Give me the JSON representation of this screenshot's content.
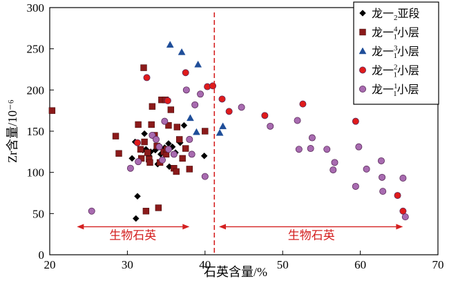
{
  "chart_data": {
    "type": "scatter",
    "xlabel": "石英含量/%",
    "ylabel": "Zr含量/10⁻⁶",
    "xlim": [
      20,
      70
    ],
    "ylim": [
      0,
      300
    ],
    "xticks": [
      20,
      30,
      40,
      50,
      60,
      70
    ],
    "yticks": [
      0,
      50,
      100,
      150,
      200,
      250,
      300
    ],
    "grid": false,
    "legend_position": "top-right",
    "divider_x": 41.2,
    "annotations": [
      {
        "text": "生物石英",
        "x_from": 23.5,
        "x_to": 38.0,
        "y": 34,
        "label_x": 30.7,
        "label_y": 24
      },
      {
        "text": "生物石英",
        "x_from": 41.8,
        "x_to": 65.5,
        "y": 34,
        "label_x": 53.7,
        "label_y": 24
      }
    ],
    "series": [
      {
        "name": "龙一2亚段",
        "legend_main": "龙一",
        "legend_sub": "2",
        "legend_sub_pos": "sub",
        "legend_tail": "亚段",
        "marker": "diamond",
        "color": "#000000",
        "points": [
          [
            30.6,
            117
          ],
          [
            31.0,
            137
          ],
          [
            31.3,
            71
          ],
          [
            31.1,
            44
          ],
          [
            32.0,
            127
          ],
          [
            32.2,
            147
          ],
          [
            32.4,
            128
          ],
          [
            32.8,
            120
          ],
          [
            33.0,
            125
          ],
          [
            33.6,
            127
          ],
          [
            33.9,
            110
          ],
          [
            34.3,
            122
          ],
          [
            34.8,
            130
          ],
          [
            35.3,
            135
          ],
          [
            35.4,
            107
          ],
          [
            35.8,
            131
          ],
          [
            36.2,
            124
          ],
          [
            36.8,
            136
          ],
          [
            37.3,
            157
          ],
          [
            39.9,
            120
          ]
        ]
      },
      {
        "name": "龙一14小层",
        "legend_main": "龙一",
        "legend_sub": "1",
        "legend_sup": "4",
        "legend_tail": "小层",
        "marker": "square",
        "color": "#8b1a1a",
        "points": [
          [
            20.3,
            175
          ],
          [
            28.5,
            144
          ],
          [
            28.9,
            123
          ],
          [
            31.4,
            158
          ],
          [
            31.7,
            128
          ],
          [
            31.8,
            117
          ],
          [
            32.1,
            227
          ],
          [
            32.2,
            137
          ],
          [
            32.4,
            53
          ],
          [
            32.6,
            124
          ],
          [
            32.8,
            116
          ],
          [
            32.9,
            112
          ],
          [
            33.1,
            158
          ],
          [
            33.2,
            180
          ],
          [
            33.5,
            145
          ],
          [
            33.8,
            132
          ],
          [
            34.0,
            57
          ],
          [
            34.2,
            112
          ],
          [
            34.4,
            188
          ],
          [
            34.7,
            125
          ],
          [
            34.9,
            188
          ],
          [
            35.0,
            122
          ],
          [
            35.1,
            128
          ],
          [
            35.3,
            157
          ],
          [
            35.6,
            176
          ],
          [
            36.0,
            105
          ],
          [
            36.3,
            101
          ],
          [
            36.4,
            155
          ],
          [
            36.7,
            140
          ],
          [
            37.1,
            117
          ],
          [
            37.5,
            129
          ],
          [
            38.0,
            104
          ],
          [
            40.0,
            150
          ]
        ]
      },
      {
        "name": "龙一13小层",
        "legend_main": "龙一",
        "legend_sub": "1",
        "legend_sup": "3",
        "legend_tail": "小层",
        "marker": "triangle",
        "color": "#1f4e99",
        "points": [
          [
            35.5,
            255
          ],
          [
            37.0,
            246
          ],
          [
            38.1,
            166
          ],
          [
            38.9,
            149
          ],
          [
            39.1,
            231
          ],
          [
            41.9,
            148
          ],
          [
            42.3,
            156
          ]
        ]
      },
      {
        "name": "龙一12小层",
        "legend_main": "龙一",
        "legend_sub": "1",
        "legend_sup": "2",
        "legend_tail": "小层",
        "marker": "circle",
        "color": "#e01b1b",
        "points": [
          [
            31.3,
            136
          ],
          [
            32.5,
            215
          ],
          [
            35.2,
            187
          ],
          [
            37.5,
            221
          ],
          [
            40.3,
            204
          ],
          [
            41.0,
            205
          ],
          [
            42.2,
            189
          ],
          [
            43.1,
            174
          ],
          [
            47.7,
            169
          ],
          [
            52.6,
            183
          ],
          [
            59.4,
            162
          ],
          [
            64.8,
            72
          ],
          [
            65.5,
            53
          ]
        ]
      },
      {
        "name": "龙一11小层",
        "legend_main": "龙一",
        "legend_sub": "1",
        "legend_sup": "1",
        "legend_tail": "小层",
        "marker": "circle",
        "color": "#a86bb0",
        "points": [
          [
            25.4,
            53
          ],
          [
            30.4,
            105
          ],
          [
            31.4,
            113
          ],
          [
            33.2,
            145
          ],
          [
            33.7,
            140
          ],
          [
            34.1,
            131
          ],
          [
            34.5,
            115
          ],
          [
            34.8,
            162
          ],
          [
            35.3,
            128
          ],
          [
            36.0,
            122
          ],
          [
            37.6,
            200
          ],
          [
            38.0,
            140
          ],
          [
            38.3,
            122
          ],
          [
            38.7,
            182
          ],
          [
            39.4,
            195
          ],
          [
            40.0,
            95
          ],
          [
            44.7,
            179
          ],
          [
            48.4,
            156
          ],
          [
            51.9,
            163
          ],
          [
            52.1,
            128
          ],
          [
            53.6,
            129
          ],
          [
            53.8,
            142
          ],
          [
            55.7,
            128
          ],
          [
            56.5,
            103
          ],
          [
            56.7,
            112
          ],
          [
            59.4,
            83
          ],
          [
            59.8,
            131
          ],
          [
            60.8,
            104
          ],
          [
            62.7,
            114
          ],
          [
            62.8,
            94
          ],
          [
            62.9,
            77
          ],
          [
            65.5,
            93
          ],
          [
            65.8,
            46
          ]
        ]
      }
    ]
  }
}
